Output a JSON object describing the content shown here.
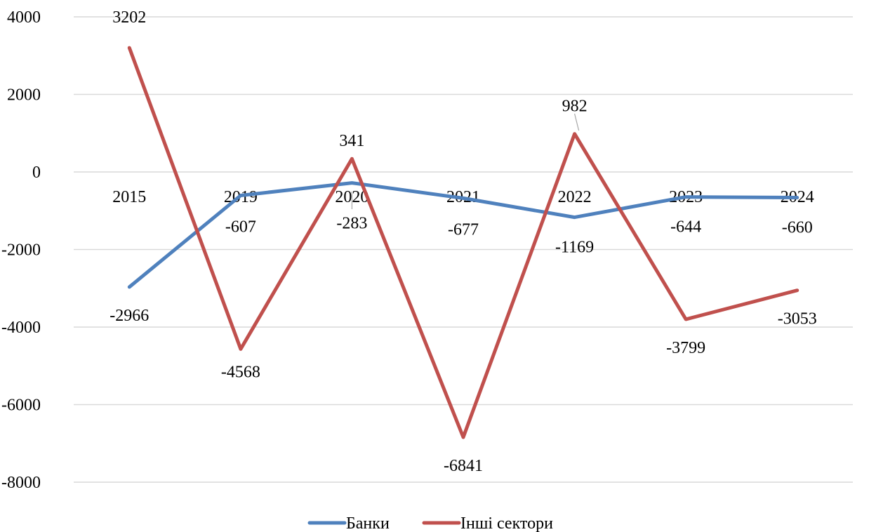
{
  "chart_data": {
    "type": "line",
    "categories": [
      "2015",
      "2019",
      "2020",
      "2021",
      "2022",
      "2023",
      "2024"
    ],
    "series": [
      {
        "name": "Банки",
        "color": "#4F81BD",
        "values": [
          -2966,
          -607,
          -283,
          -677,
          -1169,
          -644,
          -660
        ]
      },
      {
        "name": "Інші сектори",
        "color": "#C0504D",
        "values": [
          3202,
          -4568,
          341,
          -6841,
          982,
          -3799,
          -3053
        ]
      }
    ],
    "yticks": [
      "4000",
      "2000",
      "0",
      "-2000",
      "-4000",
      "-6000",
      "-8000"
    ],
    "ylim": [
      -8000,
      4000
    ],
    "grid": true,
    "legend_position": "bottom",
    "gridline_color": "#D9D9D9",
    "title": "",
    "xlabel": "",
    "ylabel": ""
  }
}
